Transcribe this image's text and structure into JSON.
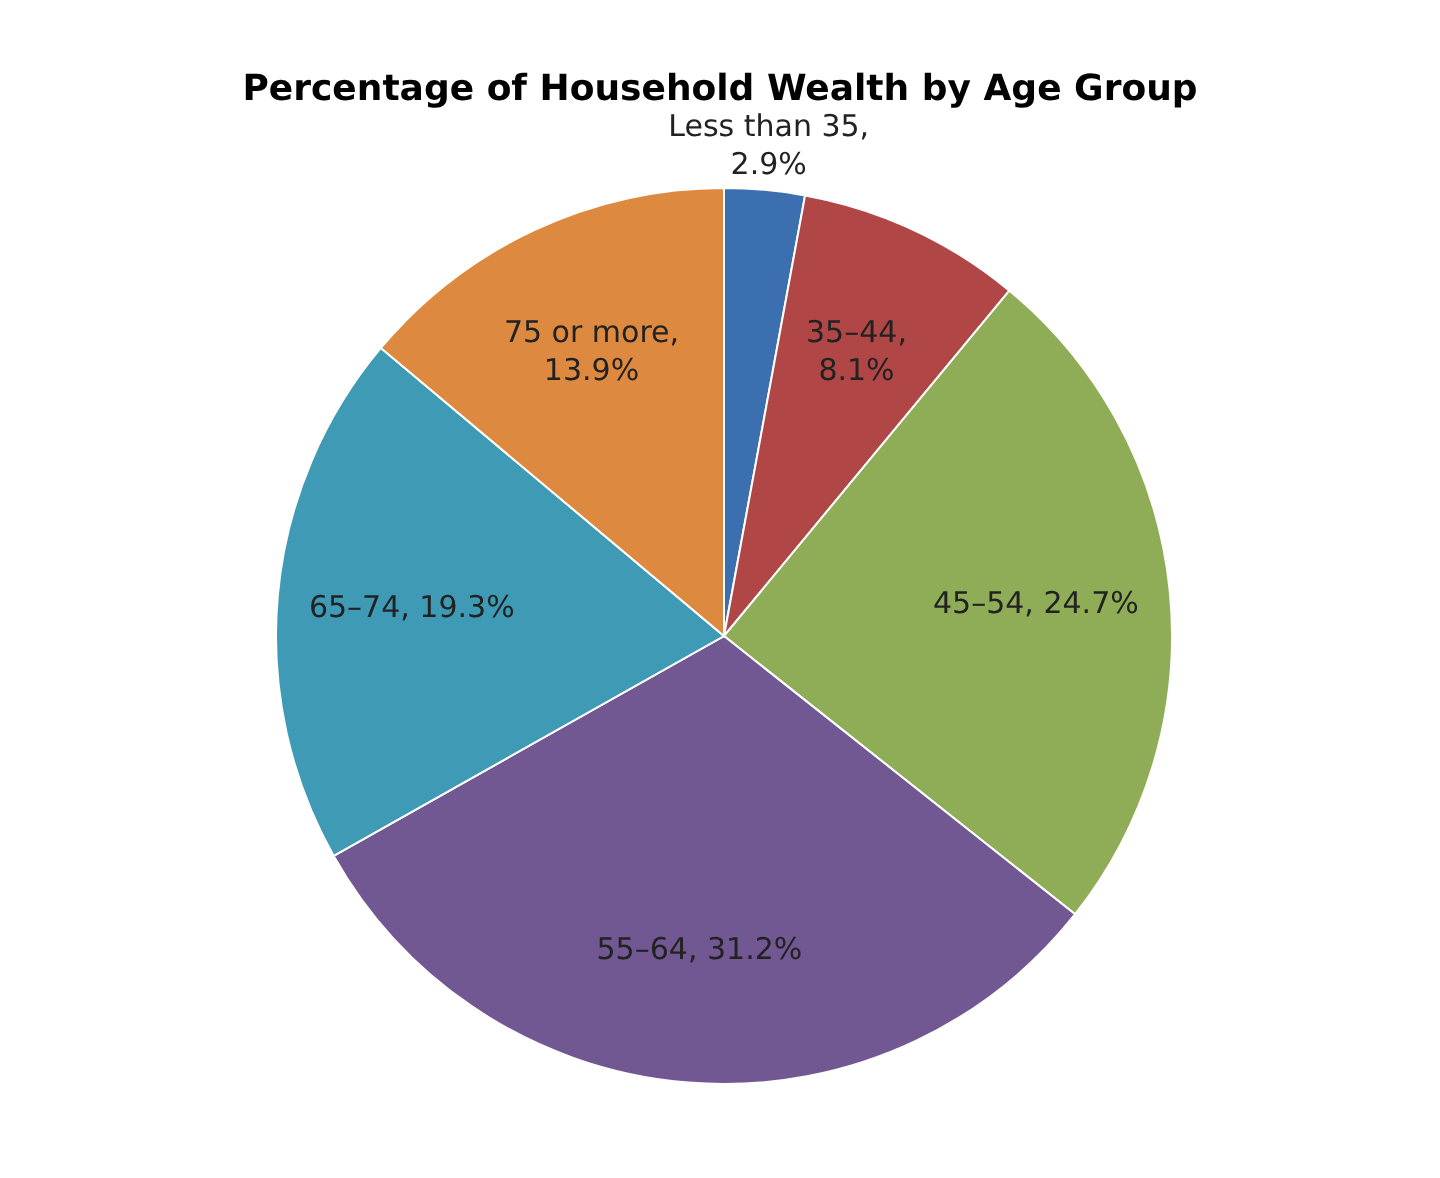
{
  "chart_data": {
    "type": "pie",
    "title": "Percentage of Household Wealth by Age Group",
    "categories": [
      "Less than 35",
      "35–44",
      "45–54",
      "55–64",
      "65–74",
      "75 or more"
    ],
    "values": [
      2.9,
      8.1,
      24.7,
      31.2,
      19.3,
      13.9
    ],
    "value_labels": [
      ", 2.9%",
      ", 8.1%",
      ", 24.7%",
      ", 31.2%",
      ", 19.3%",
      ", 13.9%"
    ],
    "colors": [
      "#3c6fb0",
      "#b04646",
      "#8fad56",
      "#715893",
      "#3f9bb5",
      "#dd8a40"
    ],
    "data_labels": true,
    "legend": false
  }
}
